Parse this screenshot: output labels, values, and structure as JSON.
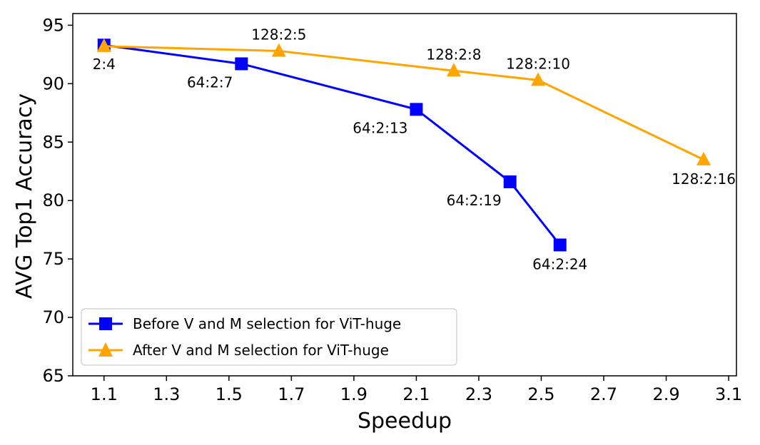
{
  "chart_data": {
    "type": "line",
    "title": "",
    "xlabel": "Speedup",
    "ylabel": "AVG Top1 Accuracy",
    "xlim": [
      1.0,
      3.125
    ],
    "ylim": [
      65,
      96
    ],
    "xticks": [
      1.1,
      1.3,
      1.5,
      1.7,
      1.9,
      2.1,
      2.3,
      2.5,
      2.7,
      2.9,
      3.1
    ],
    "yticks": [
      65,
      70,
      75,
      80,
      85,
      90,
      95
    ],
    "grid": false,
    "legend_position": "lower-left",
    "series": [
      {
        "name": "Before V and M selection for ViT-huge",
        "color": "#0000ff",
        "marker": "square",
        "x": [
          1.1,
          1.54,
          2.1,
          2.4,
          2.56
        ],
        "y": [
          93.3,
          91.7,
          87.8,
          81.6,
          76.2
        ],
        "labels": [
          "2:4",
          "64:2:7",
          "64:2:13",
          "64:2:19",
          "64:2:24"
        ],
        "label_anchor": [
          "below",
          "below-left",
          "below-left",
          "below-left",
          "below"
        ]
      },
      {
        "name": "After V and M selection for ViT-huge",
        "color": "#ffa500",
        "marker": "triangle",
        "x": [
          1.1,
          1.66,
          2.22,
          2.49,
          3.02
        ],
        "y": [
          93.2,
          92.8,
          91.1,
          90.3,
          83.5
        ],
        "labels": [
          "",
          "128:2:5",
          "128:2:8",
          "128:2:10",
          "128:2:16"
        ],
        "label_anchor": [
          "none",
          "above",
          "above",
          "above",
          "below"
        ]
      }
    ]
  }
}
